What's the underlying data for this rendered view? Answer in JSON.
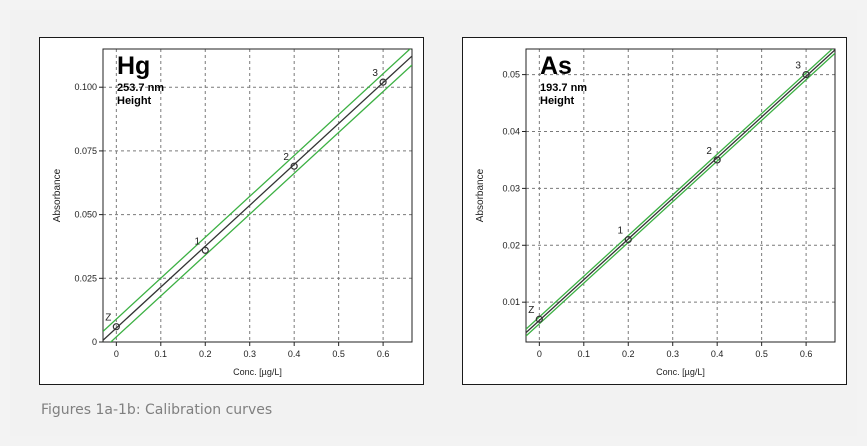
{
  "caption": "Figures 1a-1b: Calibration curves",
  "chart_data": [
    {
      "type": "line",
      "title": "Hg",
      "subtitle_lines": [
        "253.7 nm",
        "Height"
      ],
      "xlabel": "Conc. [µg/L]",
      "ylabel": "Absorbance",
      "xlim": [
        -0.03,
        0.665
      ],
      "ylim": [
        0,
        0.115
      ],
      "xticks": [
        0,
        0.1,
        0.2,
        0.3,
        0.4,
        0.5,
        0.6
      ],
      "xtick_labels": [
        "0",
        "0.1",
        "0.2",
        "0.3",
        "0.4",
        "0.5",
        "0.6"
      ],
      "yticks": [
        0,
        0.025,
        0.05,
        0.075,
        0.1
      ],
      "ytick_labels": [
        "0",
        "0.025",
        "0.050",
        "0.075",
        "0.100"
      ],
      "grid": true,
      "points": [
        {
          "label": "Z",
          "x": 0,
          "y": 0.006
        },
        {
          "label": "1",
          "x": 0.2,
          "y": 0.036
        },
        {
          "label": "2",
          "x": 0.4,
          "y": 0.069
        },
        {
          "label": "3",
          "x": 0.6,
          "y": 0.102
        }
      ],
      "fit_line": {
        "slope": 0.1605,
        "intercept": 0.0055
      },
      "confidence_band": 0.0035,
      "colors": {
        "fit": "#333333",
        "band": "#3cb043",
        "points": "#333333"
      }
    },
    {
      "type": "line",
      "title": "As",
      "subtitle_lines": [
        "193.7 nm",
        "Height"
      ],
      "xlabel": "Conc. [µg/L]",
      "ylabel": "Absorbance",
      "xlim": [
        -0.03,
        0.665
      ],
      "ylim": [
        0.003,
        0.0545
      ],
      "xticks": [
        0,
        0.1,
        0.2,
        0.3,
        0.4,
        0.5,
        0.6
      ],
      "xtick_labels": [
        "0",
        "0.1",
        "0.2",
        "0.3",
        "0.4",
        "0.5",
        "0.6"
      ],
      "yticks": [
        0.01,
        0.02,
        0.03,
        0.04,
        0.05
      ],
      "ytick_labels": [
        "0.01",
        "0.02",
        "0.03",
        "0.04",
        "0.05"
      ],
      "grid": true,
      "points": [
        {
          "label": "Z",
          "x": 0,
          "y": 0.007
        },
        {
          "label": "1",
          "x": 0.2,
          "y": 0.021
        },
        {
          "label": "2",
          "x": 0.4,
          "y": 0.035
        },
        {
          "label": "3",
          "x": 0.6,
          "y": 0.05
        }
      ],
      "fit_line": {
        "slope": 0.0715,
        "intercept": 0.0068
      },
      "confidence_band": 0.0006,
      "colors": {
        "fit": "#333333",
        "band": "#3cb043",
        "points": "#333333"
      }
    }
  ]
}
